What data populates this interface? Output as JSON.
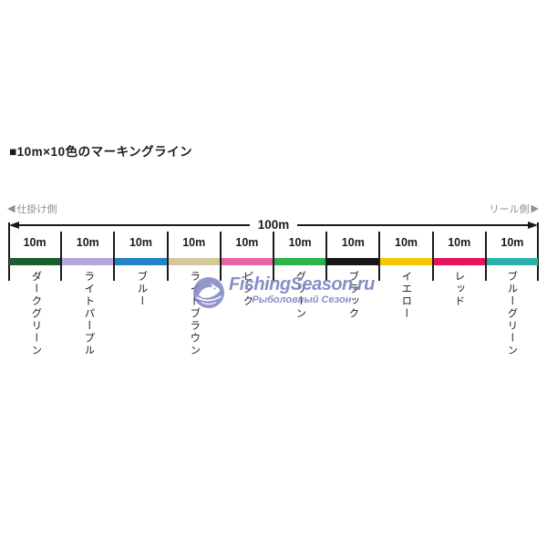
{
  "title": "■10m×10色のマーキングライン",
  "ends": {
    "left": {
      "icon": "◀",
      "label": "仕掛け側"
    },
    "right": {
      "label": "リール側",
      "icon": "▶"
    }
  },
  "ruler": {
    "total_label": "100m",
    "segments": [
      {
        "length": "10m",
        "name": "ダークグリーン",
        "color": "#1b5e2f"
      },
      {
        "length": "10m",
        "name": "ライトパープル",
        "color": "#b7a4d9"
      },
      {
        "length": "10m",
        "name": "ブルー",
        "color": "#2383c4"
      },
      {
        "length": "10m",
        "name": "ライトブラウン",
        "color": "#d4c79a"
      },
      {
        "length": "10m",
        "name": "ピンク",
        "color": "#e667a9"
      },
      {
        "length": "10m",
        "name": "グリーン",
        "color": "#2eb24c"
      },
      {
        "length": "10m",
        "name": "ブラック",
        "color": "#161616"
      },
      {
        "length": "10m",
        "name": "イエロー",
        "color": "#f3c700"
      },
      {
        "length": "10m",
        "name": "レッド",
        "color": "#e6135e"
      },
      {
        "length": "10m",
        "name": "ブルーグリーン",
        "color": "#2bb1a8"
      }
    ],
    "line_color": "#1a1a1a"
  },
  "watermark": {
    "site": "FishingSeason.ru",
    "subtitle": "Рыболовный Сезон",
    "color": "#737bbd"
  }
}
